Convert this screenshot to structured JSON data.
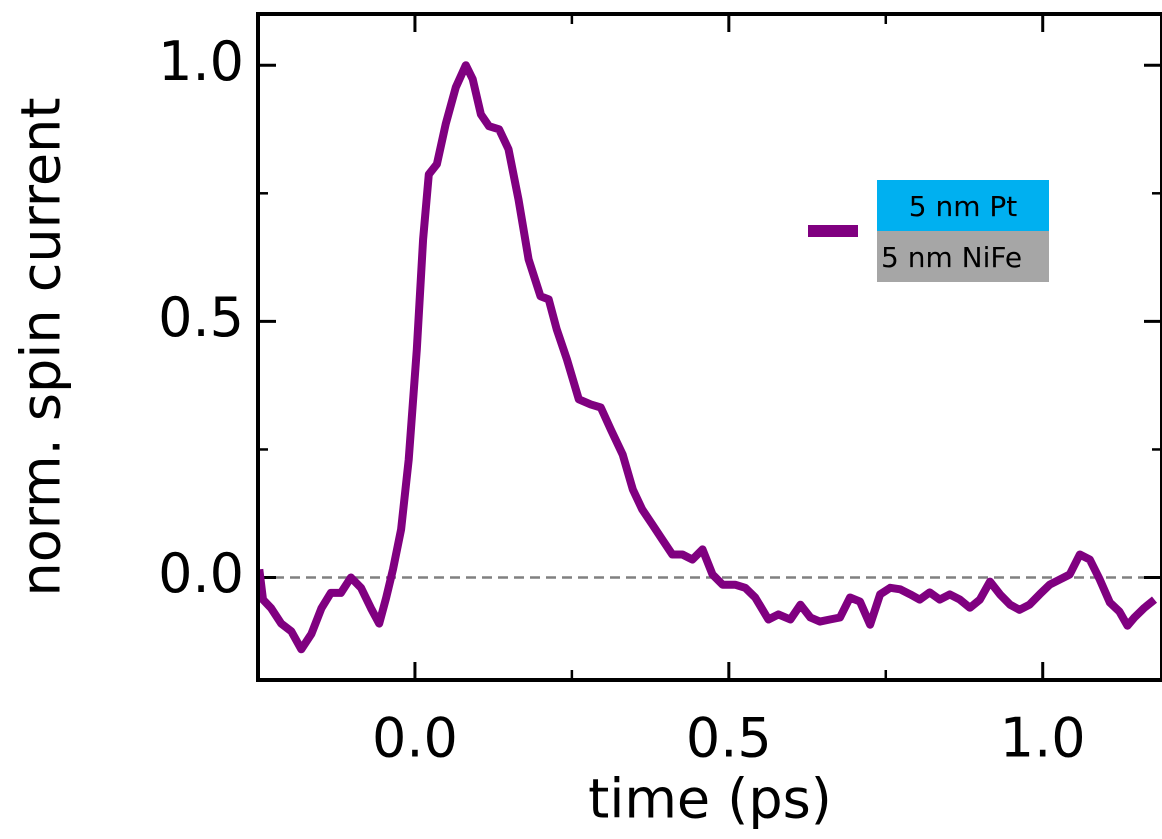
{
  "chart_data": {
    "type": "line",
    "x_label": "time (ps)",
    "y_label": "norm. spin current",
    "x": [
      -0.248,
      -0.242,
      -0.229,
      -0.213,
      -0.197,
      -0.181,
      -0.165,
      -0.149,
      -0.134,
      -0.118,
      -0.102,
      -0.086,
      -0.07,
      -0.057,
      -0.046,
      -0.035,
      -0.022,
      -0.01,
      0.003,
      0.013,
      0.022,
      0.035,
      0.049,
      0.065,
      0.081,
      0.092,
      0.105,
      0.118,
      0.134,
      0.149,
      0.165,
      0.181,
      0.2,
      0.213,
      0.226,
      0.242,
      0.261,
      0.28,
      0.296,
      0.312,
      0.331,
      0.347,
      0.362,
      0.378,
      0.394,
      0.41,
      0.426,
      0.442,
      0.458,
      0.474,
      0.49,
      0.51,
      0.526,
      0.542,
      0.563,
      0.579,
      0.598,
      0.614,
      0.63,
      0.645,
      0.661,
      0.677,
      0.693,
      0.709,
      0.725,
      0.741,
      0.757,
      0.773,
      0.789,
      0.804,
      0.82,
      0.836,
      0.852,
      0.868,
      0.884,
      0.9,
      0.916,
      0.932,
      0.948,
      0.963,
      0.979,
      0.995,
      1.011,
      1.027,
      1.043,
      1.059,
      1.075,
      1.091,
      1.107,
      1.122,
      1.135,
      1.146,
      1.162,
      1.178
    ],
    "series": [
      {
        "color": "#800080",
        "values": [
          0.016,
          -0.043,
          -0.06,
          -0.09,
          -0.105,
          -0.14,
          -0.11,
          -0.06,
          -0.03,
          -0.03,
          0,
          -0.02,
          -0.06,
          -0.09,
          -0.04,
          0.016,
          0.094,
          0.23,
          0.445,
          0.66,
          0.787,
          0.807,
          0.885,
          0.957,
          1.0,
          0.973,
          0.904,
          0.881,
          0.875,
          0.836,
          0.738,
          0.621,
          0.549,
          0.543,
          0.484,
          0.426,
          0.348,
          0.338,
          0.332,
          0.289,
          0.24,
          0.172,
          0.133,
          0.104,
          0.074,
          0.045,
          0.045,
          0.035,
          0.055,
          0.006,
          -0.014,
          -0.014,
          -0.02,
          -0.039,
          -0.082,
          -0.072,
          -0.082,
          -0.053,
          -0.078,
          -0.086,
          -0.082,
          -0.078,
          -0.039,
          -0.047,
          -0.092,
          -0.033,
          -0.02,
          -0.023,
          -0.033,
          -0.043,
          -0.029,
          -0.043,
          -0.033,
          -0.043,
          -0.059,
          -0.043,
          -0.008,
          -0.033,
          -0.053,
          -0.063,
          -0.053,
          -0.033,
          -0.014,
          -0.004,
          0.006,
          0.045,
          0.035,
          -0.004,
          -0.049,
          -0.066,
          -0.094,
          -0.078,
          -0.059,
          -0.043
        ]
      }
    ],
    "legend_labels": [
      {
        "text": "5 nm Pt",
        "color": "#00b0f0"
      },
      {
        "text": "5 nm NiFe",
        "color": "#a6a6a6"
      }
    ],
    "xlim": [
      -0.25,
      1.19
    ],
    "ylim": [
      -0.2,
      1.1
    ],
    "xticks": [
      {
        "value": 0,
        "label": "0.0"
      },
      0.5,
      {
        "value": 1,
        "label": "1.0"
      }
    ],
    "yticks": [
      {
        "value": 0,
        "label": "0.0"
      },
      0.5,
      {
        "value": 1,
        "label": "1.0"
      }
    ],
    "x_minor_ticks": [
      -0.25,
      0.25,
      0.75
    ],
    "y_minor_ticks": [
      0.25,
      0.75
    ],
    "hline": 0
  }
}
